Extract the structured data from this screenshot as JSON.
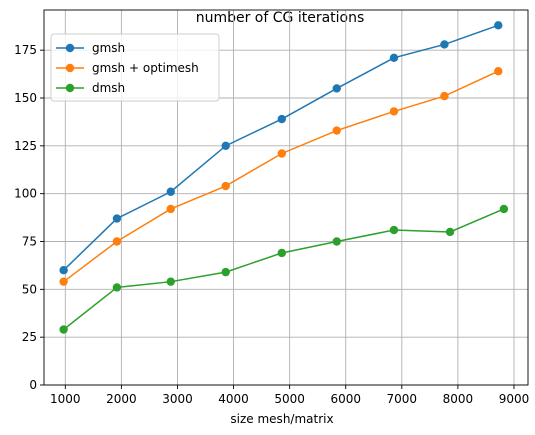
{
  "chart_data": {
    "type": "line",
    "title": "number of CG iterations",
    "xlabel": "size mesh/matrix",
    "ylabel": "",
    "xlim": [
      620,
      9250
    ],
    "ylim": [
      0,
      196
    ],
    "xticks": [
      1000,
      2000,
      3000,
      4000,
      5000,
      6000,
      7000,
      8000,
      9000
    ],
    "yticks": [
      0,
      25,
      50,
      75,
      100,
      125,
      150,
      175
    ],
    "grid": true,
    "legend": "top-left",
    "series": [
      {
        "name": "gmsh",
        "color": "#1f77b4",
        "x": [
          970,
          1920,
          2880,
          3860,
          4860,
          5840,
          6860,
          7760,
          8720
        ],
        "y": [
          60,
          87,
          101,
          125,
          139,
          155,
          171,
          178,
          188
        ]
      },
      {
        "name": "gmsh + optimesh",
        "color": "#ff7f0e",
        "x": [
          970,
          1920,
          2880,
          3860,
          4860,
          5840,
          6860,
          7760,
          8720
        ],
        "y": [
          54,
          75,
          92,
          104,
          121,
          133,
          143,
          151,
          164
        ]
      },
      {
        "name": "dmsh",
        "color": "#2ca02c",
        "x": [
          970,
          1920,
          2880,
          3860,
          4860,
          5840,
          6860,
          7860,
          8820
        ],
        "y": [
          29,
          51,
          54,
          59,
          69,
          75,
          81,
          80,
          92
        ]
      }
    ]
  }
}
